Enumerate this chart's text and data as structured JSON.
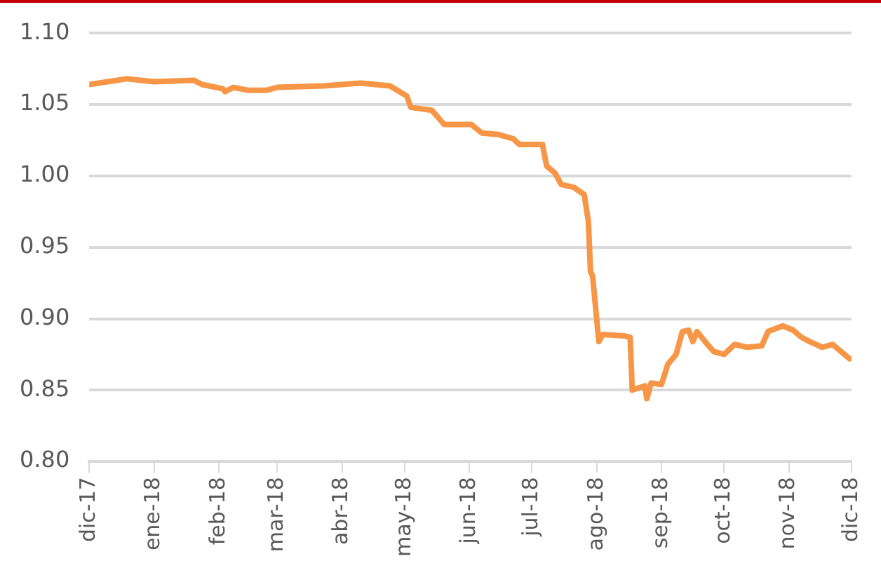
{
  "chart_data": {
    "type": "line",
    "x": [
      "2017-12-01",
      "2017-12-19",
      "2018-01-01",
      "2018-01-20",
      "2018-01-24",
      "2018-02-03",
      "2018-02-04",
      "2018-02-08",
      "2018-02-15",
      "2018-02-24",
      "2018-03-01",
      "2018-03-23",
      "2018-04-10",
      "2018-04-24",
      "2018-05-02",
      "2018-05-04",
      "2018-05-14",
      "2018-05-20",
      "2018-06-02",
      "2018-06-07",
      "2018-06-15",
      "2018-06-22",
      "2018-06-25",
      "2018-07-06",
      "2018-07-08",
      "2018-07-12",
      "2018-07-15",
      "2018-07-21",
      "2018-07-26",
      "2018-07-28",
      "2018-07-29",
      "2018-07-30",
      "2018-08-02",
      "2018-08-04",
      "2018-08-14",
      "2018-08-17",
      "2018-08-18",
      "2018-08-24",
      "2018-08-25",
      "2018-08-27",
      "2018-09-01",
      "2018-09-04",
      "2018-09-08",
      "2018-09-11",
      "2018-09-14",
      "2018-09-16",
      "2018-09-18",
      "2018-09-23",
      "2018-09-26",
      "2018-10-01",
      "2018-10-06",
      "2018-10-12",
      "2018-10-19",
      "2018-10-22",
      "2018-10-29",
      "2018-11-03",
      "2018-11-07",
      "2018-11-11",
      "2018-11-17",
      "2018-11-22",
      "2018-11-26",
      "2018-11-30"
    ],
    "series": [
      {
        "color": "#f79646",
        "values": [
          1.064,
          1.068,
          1.066,
          1.067,
          1.064,
          1.061,
          1.059,
          1.062,
          1.06,
          1.06,
          1.062,
          1.063,
          1.065,
          1.063,
          1.056,
          1.048,
          1.046,
          1.036,
          1.036,
          1.03,
          1.029,
          1.026,
          1.022,
          1.022,
          1.007,
          1.002,
          0.994,
          0.992,
          0.987,
          0.968,
          0.933,
          0.93,
          0.884,
          0.889,
          0.888,
          0.887,
          0.85,
          0.853,
          0.844,
          0.855,
          0.854,
          0.868,
          0.875,
          0.891,
          0.892,
          0.884,
          0.891,
          0.882,
          0.877,
          0.875,
          0.882,
          0.88,
          0.881,
          0.891,
          0.895,
          0.892,
          0.887,
          0.884,
          0.88,
          0.882,
          0.877,
          0.872
        ]
      }
    ],
    "xlim": [
      "2017-12-01",
      "2018-12-01"
    ],
    "xticks": [
      {
        "value": "2017-12-01",
        "label": "dic-17"
      },
      {
        "value": "2018-01-01",
        "label": "ene-18"
      },
      {
        "value": "2018-02-01",
        "label": "feb-18"
      },
      {
        "value": "2018-03-01",
        "label": "mar-18"
      },
      {
        "value": "2018-04-01",
        "label": "abr-18"
      },
      {
        "value": "2018-05-01",
        "label": "may-18"
      },
      {
        "value": "2018-06-01",
        "label": "jun-18"
      },
      {
        "value": "2018-07-01",
        "label": "jul-18"
      },
      {
        "value": "2018-08-01",
        "label": "ago-18"
      },
      {
        "value": "2018-09-01",
        "label": "sep-18"
      },
      {
        "value": "2018-10-01",
        "label": "oct-18"
      },
      {
        "value": "2018-11-01",
        "label": "nov-18"
      },
      {
        "value": "2018-12-01",
        "label": "dic-18"
      }
    ],
    "ylim": [
      0.8,
      1.1
    ],
    "yticks": [
      {
        "value": 0.8,
        "label": "0.80"
      },
      {
        "value": 0.85,
        "label": "0.85"
      },
      {
        "value": 0.9,
        "label": "0.90"
      },
      {
        "value": 0.95,
        "label": "0.95"
      },
      {
        "value": 1.0,
        "label": "1.00"
      },
      {
        "value": 1.05,
        "label": "1.05"
      },
      {
        "value": 1.1,
        "label": "1.10"
      }
    ],
    "grid": "y",
    "legend": false,
    "marker": "none",
    "line_style": "solid"
  }
}
